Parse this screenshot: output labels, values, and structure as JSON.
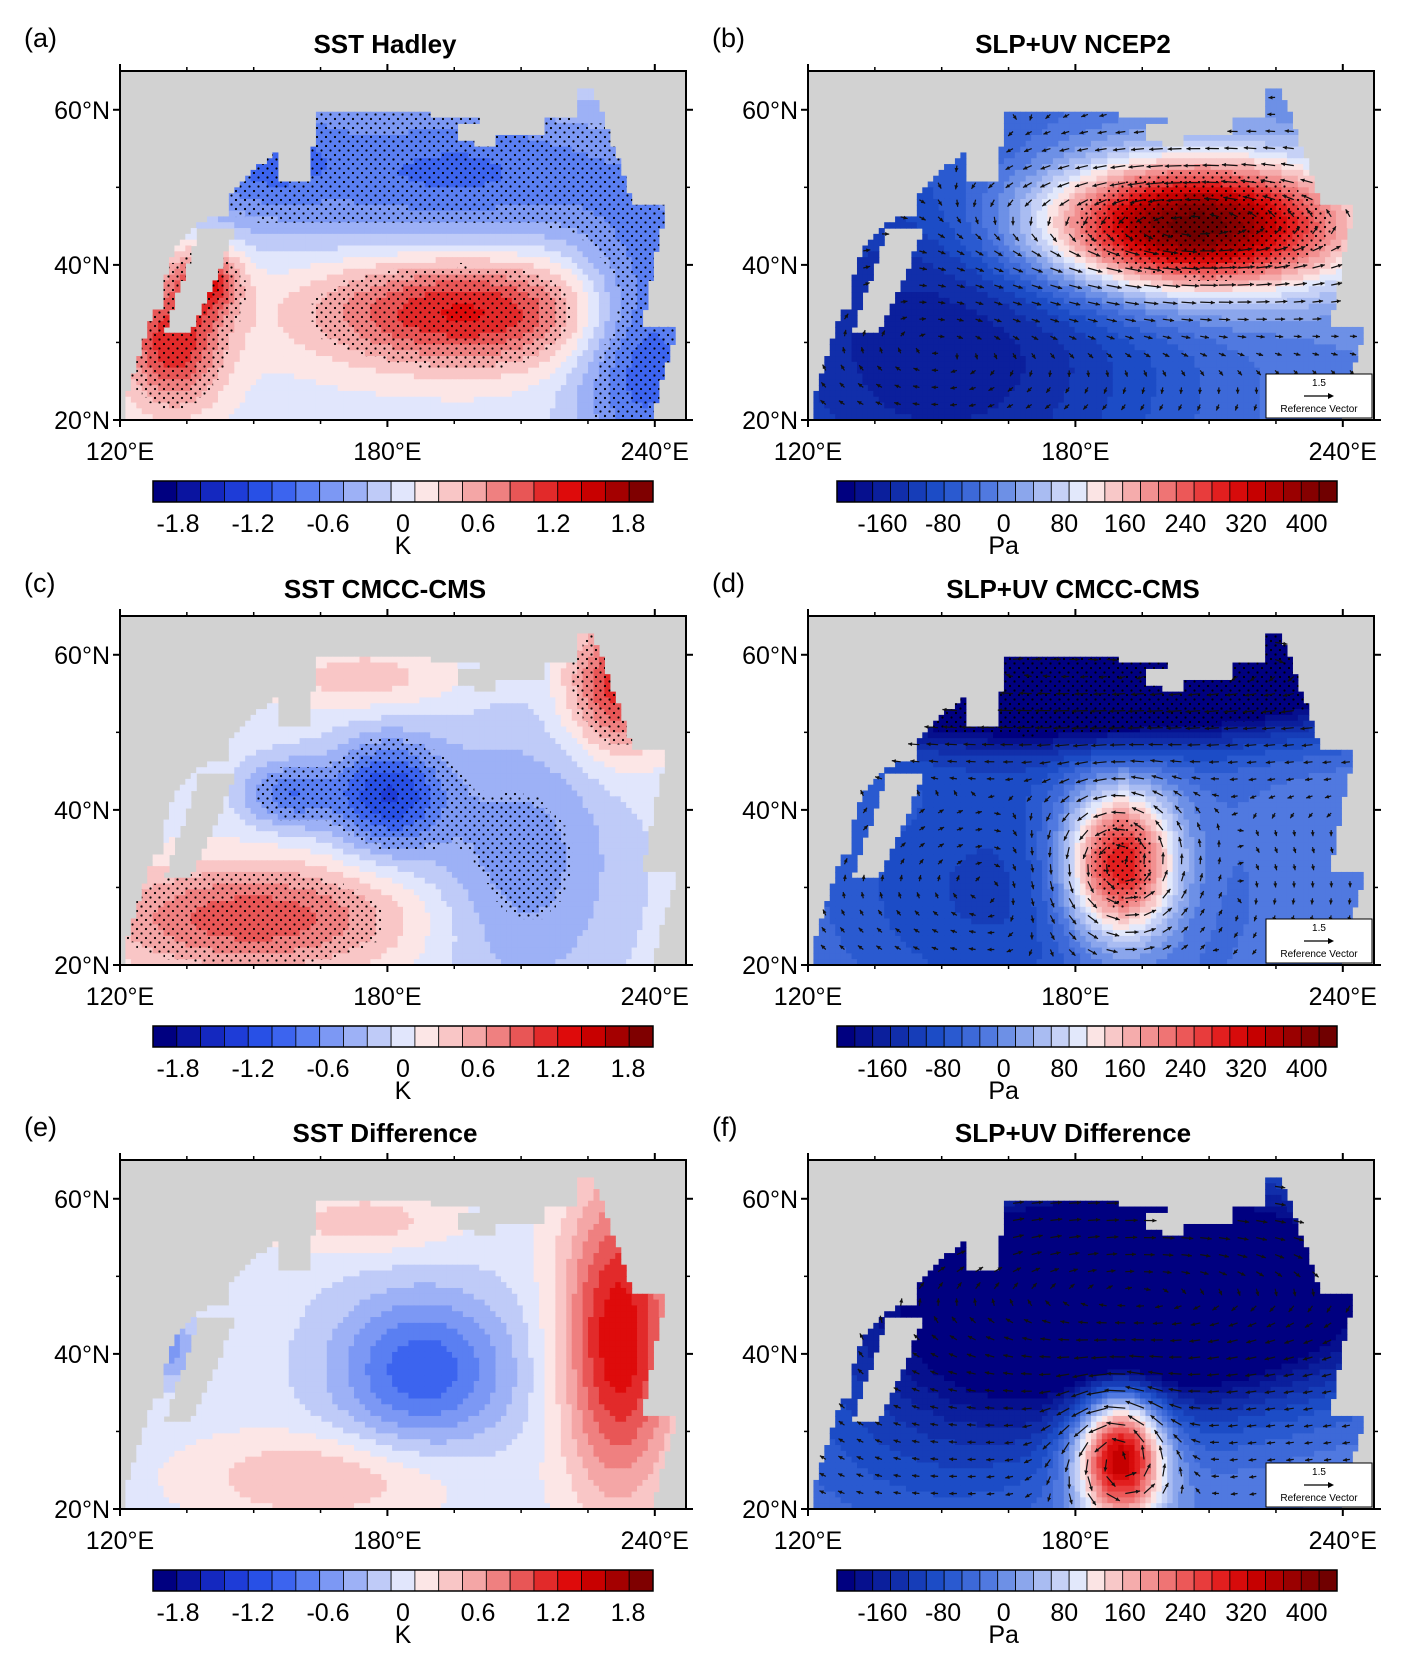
{
  "chart_data": [
    {
      "type": "heatmap",
      "panel_letter": "(a)",
      "title": "SST Hadley",
      "variable": "sst",
      "units": "K",
      "xticks": [
        "120°E",
        "180°E",
        "240°E"
      ],
      "yticks": [
        "60°N",
        "40°N",
        "20°N"
      ],
      "lon_range": [
        120,
        247
      ],
      "lat_range": [
        20,
        65
      ],
      "colorbar_labels": [
        "-1.8",
        "-1.2",
        "-0.6",
        "0",
        "0.6",
        "1.2",
        "1.8"
      ],
      "colorbar_range": [
        -2.0,
        2.0
      ],
      "stippled": true,
      "features": [
        {
          "lon": 197,
          "lat": 34,
          "sx": 24,
          "sy": 5,
          "amp": 1.3
        },
        {
          "lon": 132,
          "lat": 30,
          "sx": 8,
          "sy": 6,
          "amp": 1.2
        },
        {
          "lon": 140,
          "lat": 38,
          "sx": 5,
          "sy": 3,
          "amp": 1.0
        },
        {
          "lon": 195,
          "lat": 52,
          "sx": 35,
          "sy": 7,
          "amp": -0.9
        },
        {
          "lon": 238,
          "lat": 30,
          "sx": 11,
          "sy": 12,
          "amp": -1.1
        },
        {
          "lon": 150,
          "lat": 55,
          "sx": 12,
          "sy": 6,
          "amp": -0.6
        }
      ]
    },
    {
      "type": "heatmap",
      "panel_letter": "(b)",
      "title": "SLP+UV NCEP2",
      "variable": "slp",
      "units": "Pa",
      "xticks": [
        "120°E",
        "180°E",
        "240°E"
      ],
      "yticks": [
        "60°N",
        "40°N",
        "20°N"
      ],
      "lon_range": [
        120,
        247
      ],
      "lat_range": [
        20,
        65
      ],
      "colorbar_labels": [
        "-160",
        "-80",
        "0",
        "80",
        "160",
        "240",
        "320",
        "400"
      ],
      "colorbar_range": [
        -220,
        440
      ],
      "stippled": true,
      "reference_vector": {
        "value": "1.5",
        "label": "Reference Vector"
      },
      "features": [
        {
          "lon": 205,
          "lat": 45,
          "sx": 25,
          "sy": 6,
          "amp": 480
        },
        {
          "lon": 150,
          "lat": 30,
          "sx": 40,
          "sy": 20,
          "amp": -170
        }
      ]
    },
    {
      "type": "heatmap",
      "panel_letter": "(c)",
      "title": "SST CMCC-CMS",
      "variable": "sst",
      "units": "K",
      "xticks": [
        "120°E",
        "180°E",
        "240°E"
      ],
      "yticks": [
        "60°N",
        "40°N",
        "20°N"
      ],
      "lon_range": [
        120,
        247
      ],
      "lat_range": [
        20,
        65
      ],
      "colorbar_labels": [
        "-1.8",
        "-1.2",
        "-0.6",
        "0",
        "0.6",
        "1.2",
        "1.8"
      ],
      "colorbar_range": [
        -2.0,
        2.0
      ],
      "stippled": true,
      "features": [
        {
          "lon": 180,
          "lat": 42,
          "sx": 9,
          "sy": 5,
          "amp": -1.2
        },
        {
          "lon": 158,
          "lat": 42,
          "sx": 7,
          "sy": 3,
          "amp": -0.8
        },
        {
          "lon": 210,
          "lat": 33,
          "sx": 15,
          "sy": 12,
          "amp": -0.6
        },
        {
          "lon": 150,
          "lat": 26,
          "sx": 25,
          "sy": 5,
          "amp": 1.0
        },
        {
          "lon": 232,
          "lat": 56,
          "sx": 8,
          "sy": 6,
          "amp": 1.2
        },
        {
          "lon": 175,
          "lat": 57,
          "sx": 15,
          "sy": 3,
          "amp": 0.4
        }
      ]
    },
    {
      "type": "heatmap",
      "panel_letter": "(d)",
      "title": "SLP+UV CMCC-CMS",
      "variable": "slp",
      "units": "Pa",
      "xticks": [
        "120°E",
        "180°E",
        "240°E"
      ],
      "yticks": [
        "60°N",
        "40°N",
        "20°N"
      ],
      "lon_range": [
        120,
        247
      ],
      "lat_range": [
        20,
        65
      ],
      "colorbar_labels": [
        "-160",
        "-80",
        "0",
        "80",
        "160",
        "240",
        "320",
        "400"
      ],
      "colorbar_range": [
        -220,
        440
      ],
      "stippled": true,
      "reference_vector": {
        "value": "1.5",
        "label": "Reference Vector"
      },
      "features": [
        {
          "lon": 190,
          "lat": 33,
          "sx": 9,
          "sy": 7,
          "amp": 380
        },
        {
          "lon": 180,
          "lat": 58,
          "sx": 55,
          "sy": 6,
          "amp": -420
        },
        {
          "lon": 165,
          "lat": 30,
          "sx": 35,
          "sy": 15,
          "amp": -110
        }
      ]
    },
    {
      "type": "heatmap",
      "panel_letter": "(e)",
      "title": "SST Difference",
      "variable": "sst",
      "units": "K",
      "xticks": [
        "120°E",
        "180°E",
        "240°E"
      ],
      "yticks": [
        "60°N",
        "40°N",
        "20°N"
      ],
      "lon_range": [
        120,
        247
      ],
      "lat_range": [
        20,
        65
      ],
      "colorbar_labels": [
        "-1.8",
        "-1.2",
        "-0.6",
        "0",
        "0.6",
        "1.2",
        "1.8"
      ],
      "colorbar_range": [
        -2.0,
        2.0
      ],
      "stippled": false,
      "features": [
        {
          "lon": 232,
          "lat": 42,
          "sx": 9,
          "sy": 14,
          "amp": 1.4
        },
        {
          "lon": 188,
          "lat": 38,
          "sx": 14,
          "sy": 7,
          "amp": -1.0
        },
        {
          "lon": 165,
          "lat": 24,
          "sx": 20,
          "sy": 4,
          "amp": 0.5
        },
        {
          "lon": 175,
          "lat": 57,
          "sx": 15,
          "sy": 3,
          "amp": 0.4
        },
        {
          "lon": 131,
          "lat": 41,
          "sx": 4,
          "sy": 3,
          "amp": -0.6
        }
      ]
    },
    {
      "type": "heatmap",
      "panel_letter": "(f)",
      "title": "SLP+UV Difference",
      "variable": "slp",
      "units": "Pa",
      "xticks": [
        "120°E",
        "180°E",
        "240°E"
      ],
      "yticks": [
        "60°N",
        "40°N",
        "20°N"
      ],
      "lon_range": [
        120,
        247
      ],
      "lat_range": [
        20,
        65
      ],
      "colorbar_labels": [
        "-160",
        "-80",
        "0",
        "80",
        "160",
        "240",
        "320",
        "400"
      ],
      "colorbar_range": [
        -220,
        440
      ],
      "stippled": false,
      "reference_vector": {
        "value": "1.5",
        "label": "Reference Vector"
      },
      "features": [
        {
          "lon": 195,
          "lat": 48,
          "sx": 40,
          "sy": 10,
          "amp": -420
        },
        {
          "lon": 190,
          "lat": 27,
          "sx": 7,
          "sy": 6,
          "amp": 420
        },
        {
          "lon": 150,
          "lat": 30,
          "sx": 30,
          "sy": 12,
          "amp": -90
        }
      ]
    }
  ],
  "colors": {
    "land": "#d2d2d2",
    "sst_palette": [
      "#000080",
      "#0a14a0",
      "#1428bf",
      "#1e3cd7",
      "#2850e6",
      "#3c64ef",
      "#5a7ff2",
      "#7c98f4",
      "#9db1f6",
      "#bfcbf8",
      "#e1e6fc",
      "#fce6e6",
      "#f9c6c6",
      "#f4a6a6",
      "#ef8080",
      "#e85656",
      "#e22a2a",
      "#de0b0b",
      "#c80000",
      "#a40000",
      "#7f0000"
    ],
    "slp_palette": [
      "#000080",
      "#06108e",
      "#0b1f9c",
      "#112eaa",
      "#163db8",
      "#1c4cc6",
      "#2a5ad0",
      "#3d69d8",
      "#5079e0",
      "#6d90e6",
      "#8ba6ec",
      "#a9bcf2",
      "#c6d1f6",
      "#e2e8fb",
      "#fbe4e4",
      "#f8c8c8",
      "#f5acac",
      "#f29090",
      "#ef7474",
      "#ec5858",
      "#e83c3c",
      "#e21f1f",
      "#d70b0b",
      "#c60000",
      "#b00000",
      "#9a0000",
      "#850000",
      "#700000"
    ]
  }
}
